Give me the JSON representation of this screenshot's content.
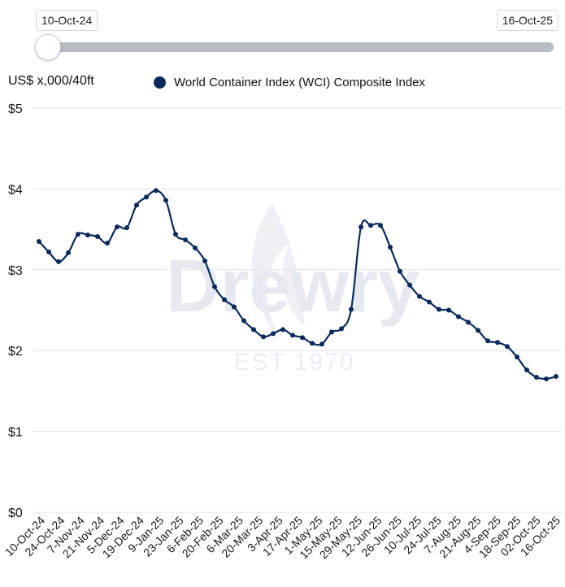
{
  "range": {
    "start_label": "10-Oct-24",
    "end_label": "16-Oct-25"
  },
  "unit_label": "US$ x,000/40ft",
  "legend_label": "World Container Index (WCI) Composite Index",
  "watermark": {
    "brand": "Drewry",
    "tagline": "EST 1970"
  },
  "colors": {
    "series": "#0b2a5b",
    "grid": "#e2e4e8",
    "slider_track": "#b6bcc3",
    "watermark": "#e6e9ef"
  },
  "chart_data": {
    "type": "line",
    "ylim": [
      0,
      5
    ],
    "y_ticks": [
      0,
      1,
      2,
      3,
      4,
      5
    ],
    "y_tick_labels": [
      "$0",
      "$1",
      "$2",
      "$3",
      "$4",
      "$5"
    ],
    "x_tick_labels": [
      "10-Oct-24",
      "24-Oct-24",
      "7-Nov-24",
      "21-Nov-24",
      "5-Dec-24",
      "19-Dec-24",
      "9-Jan-25",
      "23-Jan-25",
      "6-Feb-25",
      "20-Feb-25",
      "6-Mar-25",
      "20-Mar-25",
      "3-Apr-25",
      "17-Apr-25",
      "1-May-25",
      "15-May-25",
      "29-May-25",
      "12-Jun-25",
      "26-Jun-25",
      "10-Jul-25",
      "24-Jul-25",
      "7-Aug-25",
      "21-Aug-25",
      "4-Sep-25",
      "18-Sep-25",
      "02-Oct-25",
      "16-Oct-25"
    ],
    "xlim": [
      "2024-10-10",
      "2025-10-16"
    ],
    "series": [
      {
        "name": "World Container Index (WCI) Composite Index",
        "points": [
          [
            "2024-10-10",
            3.35
          ],
          [
            "2024-10-17",
            3.22
          ],
          [
            "2024-10-24",
            3.1
          ],
          [
            "2024-10-31",
            3.21
          ],
          [
            "2024-11-07",
            3.44
          ],
          [
            "2024-11-14",
            3.43
          ],
          [
            "2024-11-21",
            3.41
          ],
          [
            "2024-11-28",
            3.33
          ],
          [
            "2024-12-05",
            3.53
          ],
          [
            "2024-12-12",
            3.52
          ],
          [
            "2024-12-19",
            3.8
          ],
          [
            "2024-12-26",
            3.9
          ],
          [
            "2025-01-02",
            3.98
          ],
          [
            "2025-01-09",
            3.86
          ],
          [
            "2025-01-16",
            3.44
          ],
          [
            "2025-01-23",
            3.37
          ],
          [
            "2025-01-30",
            3.27
          ],
          [
            "2025-02-06",
            3.11
          ],
          [
            "2025-02-13",
            2.79
          ],
          [
            "2025-02-20",
            2.63
          ],
          [
            "2025-02-27",
            2.54
          ],
          [
            "2025-03-06",
            2.37
          ],
          [
            "2025-03-13",
            2.26
          ],
          [
            "2025-03-20",
            2.17
          ],
          [
            "2025-03-27",
            2.21
          ],
          [
            "2025-04-03",
            2.26
          ],
          [
            "2025-04-10",
            2.19
          ],
          [
            "2025-04-17",
            2.16
          ],
          [
            "2025-04-24",
            2.09
          ],
          [
            "2025-05-01",
            2.08
          ],
          [
            "2025-05-08",
            2.23
          ],
          [
            "2025-05-15",
            2.27
          ],
          [
            "2025-05-22",
            2.51
          ],
          [
            "2025-05-29",
            3.53
          ],
          [
            "2025-06-05",
            3.55
          ],
          [
            "2025-06-12",
            3.55
          ],
          [
            "2025-06-19",
            3.28
          ],
          [
            "2025-06-26",
            2.98
          ],
          [
            "2025-07-03",
            2.81
          ],
          [
            "2025-07-10",
            2.67
          ],
          [
            "2025-07-17",
            2.6
          ],
          [
            "2025-07-24",
            2.51
          ],
          [
            "2025-07-31",
            2.5
          ],
          [
            "2025-08-07",
            2.42
          ],
          [
            "2025-08-14",
            2.35
          ],
          [
            "2025-08-21",
            2.25
          ],
          [
            "2025-08-28",
            2.12
          ],
          [
            "2025-09-04",
            2.1
          ],
          [
            "2025-09-11",
            2.05
          ],
          [
            "2025-09-18",
            1.92
          ],
          [
            "2025-09-25",
            1.76
          ],
          [
            "2025-10-02",
            1.67
          ],
          [
            "2025-10-09",
            1.65
          ],
          [
            "2025-10-16",
            1.68
          ]
        ]
      }
    ]
  }
}
